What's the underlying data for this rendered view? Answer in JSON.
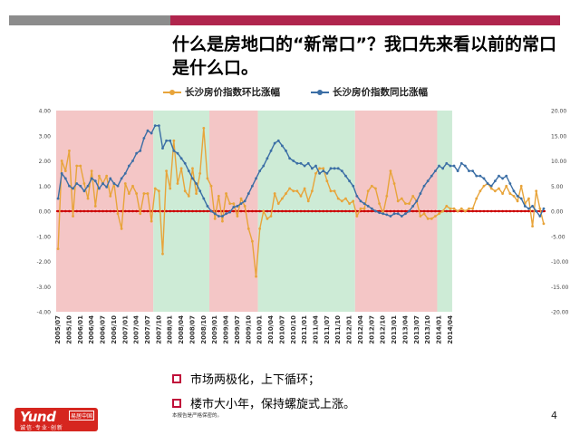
{
  "slide": {
    "title": "什么是房地口的“新常口”？我口先来看以前的常口是什么口。",
    "page_number": "4",
    "footnote": "本报告是严格保密的。",
    "accent_red": "#b0254d",
    "accent_gray": "#8c8c8c"
  },
  "bullets": [
    {
      "text": "市场两极化，上下循环；"
    },
    {
      "text": "楼市大小年，保持螺旋式上涨。"
    }
  ],
  "logo": {
    "brand": "Yund",
    "tag": "易居中国",
    "slogan": "诚信·专业·创新"
  },
  "chart_data": {
    "type": "line",
    "title": "",
    "legend_position": "top",
    "left_axis": {
      "min": -4,
      "max": 4,
      "ticks": [
        "4.00",
        "3.00",
        "2.00",
        "1.00",
        "0.00",
        "-1.00",
        "-2.00",
        "-3.00",
        "-4.00"
      ]
    },
    "right_axis": {
      "min": -20,
      "max": 20,
      "ticks": [
        "20.00",
        "15.00",
        "10.00",
        "5.00",
        "0.00",
        "-5.00",
        "-10.00",
        "-15.00",
        "-20.00"
      ]
    },
    "x_labels": [
      "2005/07",
      "2005/10",
      "2006/01",
      "2006/04",
      "2006/07",
      "2006/10",
      "2007/01",
      "2007/04",
      "2007/07",
      "2007/10",
      "2008/01",
      "2008/04",
      "2008/07",
      "2008/10",
      "2009/01",
      "2009/04",
      "2009/07",
      "2009/10",
      "2010/01",
      "2010/04",
      "2010/07",
      "2010/10",
      "2011/01",
      "2011/04",
      "2011/07",
      "2011/10",
      "2012/01",
      "2012/04",
      "2012/07",
      "2012/10",
      "2013/01",
      "2013/04",
      "2013/07",
      "2013/10",
      "2014/01",
      "2014/04"
    ],
    "phases": [
      {
        "type": "up",
        "from": 0,
        "to": 26,
        "color": "#f4c6c6"
      },
      {
        "type": "down",
        "from": 26,
        "to": 41,
        "color": "#cdebd6"
      },
      {
        "type": "up",
        "from": 41,
        "to": 54,
        "color": "#f4c6c6"
      },
      {
        "type": "down",
        "from": 54,
        "to": 80,
        "color": "#cdebd6"
      },
      {
        "type": "up",
        "from": 80,
        "to": 102,
        "color": "#f4c6c6"
      },
      {
        "type": "down",
        "from": 102,
        "to": 106,
        "color": "#cdebd6"
      }
    ],
    "zero_line_color": "#cc0000",
    "series": [
      {
        "name": "长沙房价指数环比涨幅",
        "axis": "left",
        "color": "#e8a43a",
        "values": [
          -1.5,
          2.0,
          1.6,
          2.4,
          -0.2,
          1.8,
          1.8,
          1.1,
          0.5,
          1.6,
          0.2,
          1.4,
          1.1,
          1.4,
          0.6,
          1.1,
          -0.1,
          -0.7,
          1.1,
          0.7,
          1.0,
          0.7,
          -0.1,
          0.7,
          0.7,
          -0.4,
          0.9,
          0.8,
          -1.7,
          1.6,
          0.9,
          2.8,
          1.1,
          1.7,
          0.8,
          0.6,
          1.7,
          0.7,
          1.5,
          3.3,
          1.3,
          1.0,
          -0.3,
          0.6,
          -0.4,
          0.7,
          0.3,
          0.3,
          -0.2,
          0.5,
          0.2,
          -0.7,
          -1.2,
          -2.6,
          -0.7,
          0.0,
          -0.3,
          -0.2,
          0.7,
          0.3,
          0.5,
          0.7,
          0.9,
          0.8,
          0.8,
          0.6,
          0.9,
          0.4,
          0.8,
          1.5,
          1.7,
          1.7,
          1.2,
          0.8,
          0.8,
          0.5,
          0.4,
          0.5,
          0.3,
          0.4,
          -0.2,
          0.1,
          0.1,
          0.8,
          1.0,
          0.9,
          0.3,
          -0.1,
          0.6,
          1.6,
          1.1,
          0.4,
          0.5,
          0.3,
          0.3,
          0.6,
          0.4,
          -0.2,
          -0.1,
          -0.3,
          -0.3,
          -0.2,
          -0.1,
          0.0,
          0.2,
          0.1,
          0.1,
          0.0,
          0.1,
          0.0,
          0.1,
          0.1,
          0.5,
          0.8,
          1.0,
          1.1,
          0.9,
          0.8,
          0.9,
          0.7,
          1.0,
          0.7,
          0.6,
          0.4,
          1.0,
          0.3,
          0.5,
          -0.6,
          0.8,
          0.1,
          -0.5
        ]
      },
      {
        "name": "长沙房价指数同比涨幅",
        "axis": "right",
        "color": "#3b6ea5",
        "values": [
          2.5,
          7.5,
          6.5,
          5.0,
          4.5,
          5.5,
          5.0,
          4.0,
          5.0,
          6.5,
          6.0,
          4.5,
          5.5,
          4.8,
          6.5,
          5.5,
          5.0,
          6.5,
          7.5,
          9.0,
          10.0,
          11.5,
          12.0,
          14.5,
          16.0,
          15.5,
          17.0,
          17.0,
          12.5,
          14.0,
          14.0,
          12.0,
          11.5,
          10.5,
          9.5,
          8.0,
          6.5,
          5.5,
          4.0,
          2.5,
          1.0,
          0.0,
          -0.5,
          -1.0,
          -1.0,
          -0.5,
          -0.2,
          0.8,
          1.0,
          1.5,
          2.0,
          3.5,
          5.0,
          6.5,
          8.0,
          9.0,
          10.5,
          12.0,
          13.5,
          14.0,
          13.0,
          12.0,
          10.5,
          10.0,
          9.5,
          9.5,
          9.0,
          9.5,
          8.5,
          9.0,
          7.5,
          8.0,
          7.5,
          8.5,
          8.5,
          8.5,
          8.0,
          7.0,
          6.0,
          5.0,
          3.0,
          2.0,
          1.5,
          1.0,
          0.5,
          0.0,
          -0.3,
          -0.5,
          -0.7,
          -1.0,
          -0.5,
          -0.5,
          -1.0,
          -0.5,
          0.0,
          1.0,
          2.0,
          3.5,
          5.0,
          6.0,
          7.0,
          8.0,
          9.0,
          8.5,
          9.5,
          9.0,
          9.0,
          8.0,
          9.5,
          9.0,
          8.0,
          8.0,
          7.0,
          7.0,
          6.5,
          5.5,
          5.0,
          6.0,
          7.0,
          6.5,
          7.0,
          5.5,
          4.0,
          3.0,
          2.5,
          1.0,
          0.5,
          1.0,
          0.0,
          -1.0,
          0.5
        ]
      }
    ]
  }
}
